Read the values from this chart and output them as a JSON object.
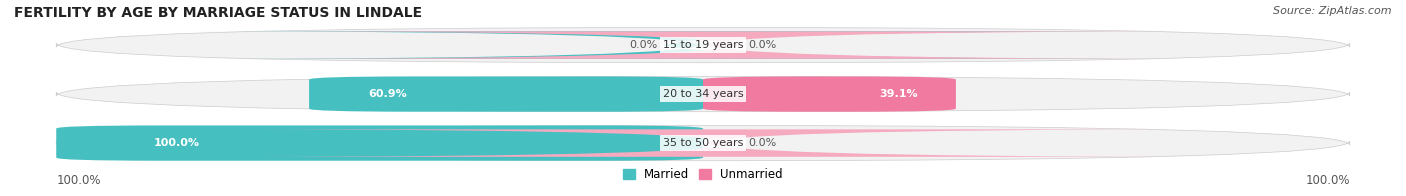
{
  "title": "FERTILITY BY AGE BY MARRIAGE STATUS IN LINDALE",
  "source": "Source: ZipAtlas.com",
  "categories": [
    "15 to 19 years",
    "20 to 34 years",
    "35 to 50 years"
  ],
  "married_values": [
    0.0,
    60.9,
    100.0
  ],
  "unmarried_values": [
    0.0,
    39.1,
    0.0
  ],
  "married_color": "#45bfc0",
  "unmarried_color": "#f07aa0",
  "unmarried_color_light": "#f5aac0",
  "bar_bg_color": "#efefef",
  "legend_married": "Married",
  "legend_unmarried": "Unmarried",
  "left_axis_label": "100.0%",
  "right_axis_label": "100.0%",
  "title_fontsize": 10,
  "source_fontsize": 8,
  "label_fontsize": 8.5,
  "bar_label_fontsize": 8,
  "cat_label_fontsize": 8
}
